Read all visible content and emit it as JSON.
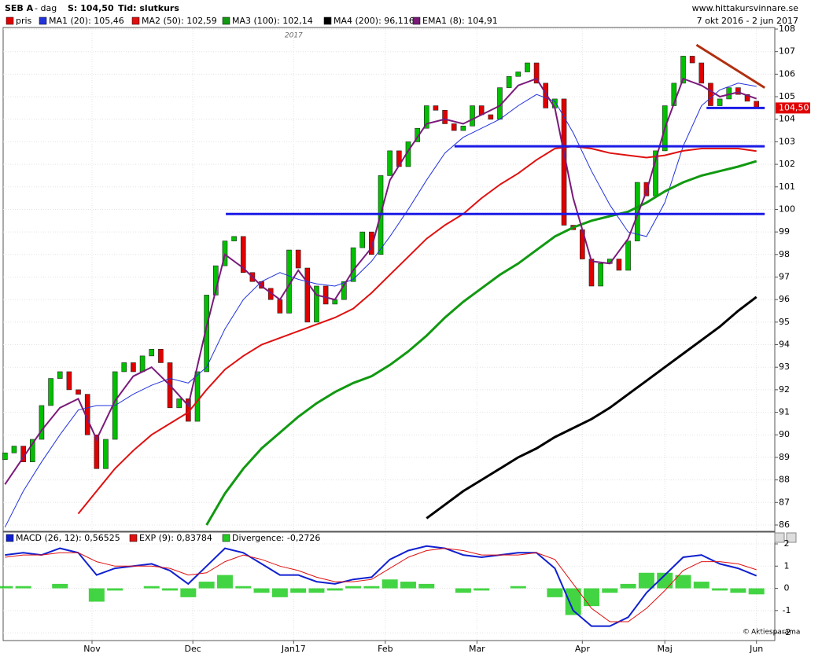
{
  "header": {
    "ticker": "SEB A",
    "period": "- dag",
    "last": "S: 104,50",
    "mode": "Tid: slutkurs",
    "source": "www.hittakursvinnare.se",
    "date_range": "7 okt 2016 - 2 jun 2017",
    "footer": "Aktiesparama"
  },
  "chart_data": [
    {
      "type": "candlestick",
      "xlim": [
        -0.4,
        168
      ],
      "ylim": [
        85.72,
        108.07
      ],
      "yticks": [
        86,
        87,
        88,
        89,
        90,
        91,
        92,
        93,
        94,
        95,
        96,
        97,
        98,
        99,
        100,
        101,
        102,
        103,
        104,
        105,
        106,
        107,
        108
      ],
      "grid": true,
      "annotations": [
        {
          "text": "2017",
          "x": 63
        }
      ],
      "last_price": {
        "value": 104.5,
        "label": "104,50"
      },
      "candles": {
        "name": "pris",
        "color": "#e00000",
        "up_color": "#00c000",
        "x": [
          0,
          2,
          4,
          6,
          8,
          10,
          12,
          14,
          16,
          18,
          20,
          22,
          24,
          26,
          28,
          30,
          32,
          34,
          36,
          38,
          40,
          42,
          44,
          46,
          48,
          50,
          52,
          54,
          56,
          58,
          60,
          62,
          64,
          66,
          68,
          70,
          72,
          74,
          76,
          78,
          80,
          82,
          84,
          86,
          88,
          90,
          92,
          94,
          96,
          98,
          100,
          102,
          104,
          106,
          108,
          110,
          112,
          114,
          116,
          118,
          120,
          122,
          124,
          126,
          128,
          130,
          132,
          134,
          136,
          138,
          140,
          142,
          144,
          146,
          148,
          150,
          152,
          154,
          156,
          158,
          160,
          162,
          164
        ],
        "open": [
          88.9,
          89.2,
          89.5,
          88.8,
          89.8,
          91.3,
          92.5,
          92.8,
          92.0,
          91.8,
          90.0,
          88.5,
          89.8,
          92.8,
          93.2,
          92.8,
          93.5,
          93.8,
          93.2,
          91.2,
          91.6,
          90.6,
          92.8,
          96.2,
          97.5,
          98.6,
          98.8,
          97.2,
          96.8,
          96.5,
          96.0,
          95.4,
          98.2,
          97.4,
          95.0,
          96.6,
          95.8,
          96.0,
          96.8,
          98.3,
          99.0,
          98.0,
          101.5,
          102.6,
          101.9,
          103.0,
          103.6,
          104.6,
          104.4,
          103.8,
          103.5,
          103.7,
          104.6,
          104.2,
          104.0,
          105.4,
          105.9,
          106.1,
          106.5,
          105.6,
          104.5,
          104.9,
          99.3,
          99.1,
          97.8,
          96.6,
          97.6,
          97.8,
          97.3,
          98.6,
          101.2,
          100.6,
          102.6,
          104.6,
          105.6,
          106.8,
          106.5,
          105.6,
          104.6,
          104.9,
          105.4,
          105.1,
          104.8
        ],
        "close": [
          89.2,
          89.5,
          88.8,
          89.8,
          91.3,
          92.5,
          92.8,
          92.0,
          91.8,
          90.0,
          88.5,
          89.8,
          92.8,
          93.2,
          92.8,
          93.5,
          93.8,
          93.2,
          91.2,
          91.6,
          90.6,
          92.8,
          96.2,
          97.5,
          98.6,
          98.8,
          97.2,
          96.8,
          96.5,
          96.0,
          95.4,
          98.2,
          97.4,
          95.0,
          96.6,
          95.8,
          96.0,
          96.8,
          98.3,
          99.0,
          98.0,
          101.5,
          102.6,
          101.9,
          103.0,
          103.6,
          104.6,
          104.4,
          103.8,
          103.5,
          103.7,
          104.6,
          104.2,
          104.0,
          105.4,
          105.9,
          106.1,
          106.5,
          105.6,
          104.5,
          104.9,
          99.3,
          99.1,
          97.8,
          96.6,
          97.6,
          97.8,
          97.3,
          98.6,
          101.2,
          100.6,
          102.6,
          104.6,
          105.6,
          106.8,
          106.5,
          105.6,
          104.6,
          104.9,
          105.4,
          105.1,
          104.8,
          104.5
        ]
      },
      "line_x": [
        0,
        4,
        8,
        12,
        16,
        20,
        24,
        28,
        32,
        36,
        40,
        44,
        48,
        52,
        56,
        60,
        64,
        68,
        72,
        76,
        80,
        84,
        88,
        92,
        96,
        100,
        104,
        108,
        112,
        116,
        120,
        124,
        128,
        132,
        136,
        140,
        144,
        148,
        152,
        156,
        160,
        164
      ],
      "series": [
        {
          "name": "MA1 (20): 105,46",
          "color": "#2233dd",
          "width": 1,
          "values": [
            85.9,
            87.5,
            88.8,
            90.0,
            91.1,
            91.3,
            91.3,
            91.8,
            92.2,
            92.5,
            92.3,
            93.0,
            94.7,
            96.0,
            96.8,
            97.2,
            96.9,
            96.7,
            96.6,
            96.9,
            97.7,
            98.8,
            100.0,
            101.3,
            102.5,
            103.2,
            103.6,
            104.0,
            104.6,
            105.1,
            104.8,
            103.4,
            101.7,
            100.2,
            99.0,
            98.8,
            100.3,
            102.8,
            104.6,
            105.3,
            105.6,
            105.46
          ]
        },
        {
          "name": "MA2 (50): 102,59",
          "color": "#e01010",
          "width": 2,
          "values": [
            null,
            null,
            null,
            null,
            86.5,
            87.5,
            88.5,
            89.3,
            90.0,
            90.5,
            91.0,
            92.0,
            92.9,
            93.5,
            94.0,
            94.3,
            94.6,
            94.9,
            95.2,
            95.6,
            96.3,
            97.1,
            97.9,
            98.7,
            99.3,
            99.8,
            100.5,
            101.1,
            101.6,
            102.2,
            102.7,
            102.8,
            102.7,
            102.5,
            102.4,
            102.3,
            102.4,
            102.6,
            102.7,
            102.7,
            102.7,
            102.59
          ]
        },
        {
          "name": "MA3 (100): 102,14",
          "color": "#119911",
          "width": 3,
          "values": [
            null,
            null,
            null,
            null,
            null,
            null,
            null,
            null,
            null,
            null,
            null,
            86.0,
            87.4,
            88.5,
            89.4,
            90.1,
            90.8,
            91.4,
            91.9,
            92.3,
            92.6,
            93.1,
            93.7,
            94.4,
            95.2,
            95.9,
            96.5,
            97.1,
            97.6,
            98.2,
            98.8,
            99.2,
            99.5,
            99.7,
            99.9,
            100.3,
            100.8,
            101.2,
            101.5,
            101.7,
            101.9,
            102.14
          ]
        },
        {
          "name": "MA4 (200): 96,116",
          "color": "#000000",
          "width": 3,
          "values": [
            null,
            null,
            null,
            null,
            null,
            null,
            null,
            null,
            null,
            null,
            null,
            null,
            null,
            null,
            null,
            null,
            null,
            null,
            null,
            null,
            null,
            null,
            null,
            86.3,
            86.9,
            87.5,
            88.0,
            88.5,
            89.0,
            89.4,
            89.9,
            90.3,
            90.7,
            91.2,
            91.8,
            92.4,
            93.0,
            93.6,
            94.2,
            94.8,
            95.5,
            96.116
          ]
        },
        {
          "name": "EMA1 (8): 104,91",
          "color": "#7a1a7a",
          "width": 2,
          "values": [
            87.8,
            89.0,
            90.2,
            91.2,
            91.6,
            89.8,
            91.5,
            92.6,
            93.0,
            92.2,
            91.3,
            94.8,
            98.0,
            97.4,
            96.6,
            96.0,
            97.3,
            96.2,
            96.0,
            97.3,
            98.3,
            101.3,
            102.6,
            103.8,
            104.0,
            103.8,
            104.2,
            104.6,
            105.5,
            105.8,
            104.5,
            100.5,
            97.7,
            97.6,
            98.7,
            100.8,
            103.6,
            105.8,
            105.5,
            105.0,
            105.2,
            104.91
          ]
        }
      ],
      "trendlines": [
        {
          "color": "#1a1ae6",
          "x": [
            48.2,
            165.8
          ],
          "y": [
            99.8,
            99.8
          ]
        },
        {
          "color": "#1a1ae6",
          "x": [
            98.1,
            165.8
          ],
          "y": [
            102.8,
            102.8
          ]
        },
        {
          "color": "#1a1ae6",
          "x": [
            153.1,
            165.8
          ],
          "y": [
            104.5,
            104.5
          ]
        },
        {
          "color": "#b03010",
          "x": [
            150.9,
            165.8
          ],
          "y": [
            107.3,
            105.4
          ]
        }
      ]
    },
    {
      "type": "macd",
      "xlim": [
        -0.4,
        168
      ],
      "ylim": [
        -2.35,
        2.53
      ],
      "yticks": [
        -2,
        -1,
        0,
        1,
        2
      ],
      "xticks": [
        {
          "value": 19,
          "label": "Nov"
        },
        {
          "value": 41,
          "label": "Dec"
        },
        {
          "value": 63,
          "label": "Jan17"
        },
        {
          "value": 83,
          "label": "Feb"
        },
        {
          "value": 103,
          "label": "Mar"
        },
        {
          "value": 126,
          "label": "Apr"
        },
        {
          "value": 144,
          "label": "Maj"
        },
        {
          "value": 164,
          "label": "Jun"
        }
      ],
      "x": [
        0,
        4,
        8,
        12,
        16,
        20,
        24,
        28,
        32,
        36,
        40,
        44,
        48,
        52,
        56,
        60,
        64,
        68,
        72,
        76,
        80,
        84,
        88,
        92,
        96,
        100,
        104,
        108,
        112,
        116,
        120,
        124,
        128,
        132,
        136,
        140,
        144,
        148,
        152,
        156,
        160,
        164
      ],
      "series": [
        {
          "name": "MACD (26, 12): 0,56525",
          "color": "#1020d0",
          "kind": "line",
          "values": [
            1.5,
            1.6,
            1.5,
            1.8,
            1.6,
            0.6,
            0.9,
            1.0,
            1.1,
            0.8,
            0.2,
            1.0,
            1.8,
            1.6,
            1.1,
            0.6,
            0.6,
            0.3,
            0.2,
            0.4,
            0.5,
            1.3,
            1.7,
            1.9,
            1.8,
            1.5,
            1.4,
            1.5,
            1.6,
            1.6,
            0.9,
            -1.0,
            -1.7,
            -1.7,
            -1.3,
            -0.2,
            0.6,
            1.4,
            1.5,
            1.1,
            0.9,
            0.56525
          ]
        },
        {
          "name": "EXP (9): 0,83784",
          "color": "#e01010",
          "kind": "line",
          "values": [
            1.4,
            1.5,
            1.5,
            1.6,
            1.6,
            1.2,
            1.0,
            1.0,
            1.0,
            0.9,
            0.6,
            0.7,
            1.2,
            1.5,
            1.3,
            1.0,
            0.8,
            0.5,
            0.3,
            0.3,
            0.4,
            0.9,
            1.4,
            1.7,
            1.8,
            1.7,
            1.5,
            1.5,
            1.5,
            1.6,
            1.3,
            0.2,
            -0.9,
            -1.5,
            -1.5,
            -0.9,
            -0.1,
            0.8,
            1.2,
            1.2,
            1.1,
            0.83784
          ]
        },
        {
          "name": "Divergence: -0,2726",
          "color": "#22cc22",
          "kind": "bar",
          "values": [
            0.1,
            0.1,
            0,
            0.2,
            0,
            -0.6,
            -0.1,
            0,
            0.1,
            -0.1,
            -0.4,
            0.3,
            0.6,
            0.1,
            -0.2,
            -0.4,
            -0.2,
            -0.2,
            -0.1,
            0.1,
            0.1,
            0.4,
            0.3,
            0.2,
            0,
            -0.2,
            -0.1,
            0,
            0.1,
            0,
            -0.4,
            -1.2,
            -0.8,
            -0.2,
            0.2,
            0.7,
            0.7,
            0.6,
            0.3,
            -0.1,
            -0.2,
            -0.2726
          ]
        }
      ]
    }
  ]
}
